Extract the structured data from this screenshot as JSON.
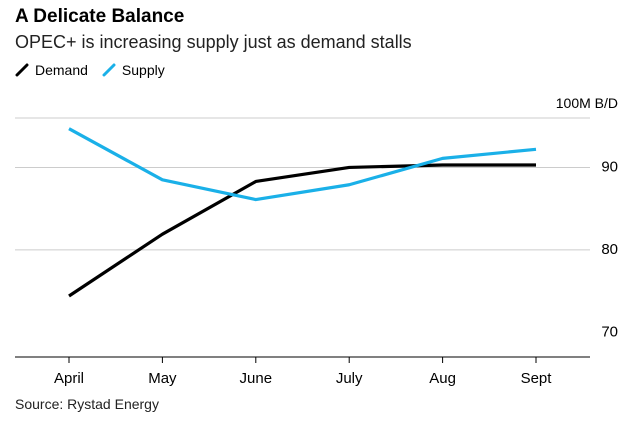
{
  "chart_data": {
    "type": "line",
    "title": "A Delicate Balance",
    "subtitle": "OPEC+ is increasing supply just as demand stalls",
    "unit_label": "100M B/D",
    "categories": [
      "April",
      "May",
      "June",
      "July",
      "Aug",
      "Sept"
    ],
    "ylim": [
      67,
      96
    ],
    "yticks": [
      70,
      80,
      90
    ],
    "grid": true,
    "legend_position": "top-left",
    "series": [
      {
        "name": "Demand",
        "color": "#000000",
        "values": [
          74.4,
          81.9,
          88.3,
          90.0,
          90.3,
          90.3
        ]
      },
      {
        "name": "Supply",
        "color": "#1ab0e8",
        "values": [
          94.7,
          88.5,
          86.1,
          87.9,
          91.1,
          92.2
        ]
      }
    ],
    "source": "Source: Rystad Energy"
  }
}
